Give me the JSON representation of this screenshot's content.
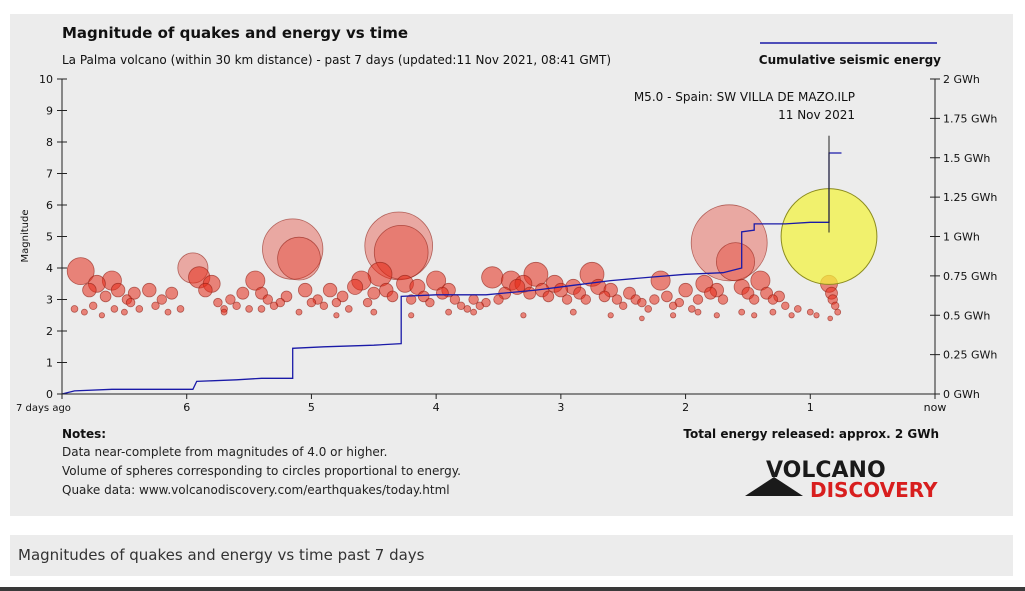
{
  "caption": "Magnitudes of quakes and energy vs time past 7 days",
  "colors": {
    "panel_bg": "#ececec",
    "energy_line": "#1a1aa8",
    "bubble_fill": "#e62c1a",
    "bubble_stroke": "#8c1a10",
    "highlight_fill": "#f2f23c",
    "highlight_stroke": "#8c8c20",
    "axis": "#222222",
    "logo_dark": "#1a1a1a",
    "logo_red": "#d81e1e"
  },
  "notes": {
    "heading": "Notes:",
    "lines": [
      "Data near-complete from magnitudes of 4.0 or higher.",
      "Volume of spheres corresponding to circles proportional to energy.",
      "Quake data: www.volcanodiscovery.com/earthquakes/today.html"
    ]
  },
  "total_energy": "Total energy released: approx. 2 GWh",
  "logo": {
    "line1": "VOLCANO",
    "line2": "DISCOVERY"
  },
  "chart_data": {
    "type": "scatter",
    "title": "Magnitude of quakes and energy vs time",
    "subtitle": "La Palma volcano (within 30 km distance) - past 7 days (updated:11 Nov 2021, 08:41 GMT)",
    "ylabel": "Magnitude",
    "xlim": [
      7,
      0
    ],
    "ylim": [
      0,
      10
    ],
    "x_ticks": [
      {
        "value": 7,
        "label": "7 days ago"
      },
      {
        "value": 6,
        "label": "6"
      },
      {
        "value": 5,
        "label": "5"
      },
      {
        "value": 4,
        "label": "4"
      },
      {
        "value": 3,
        "label": "3"
      },
      {
        "value": 2,
        "label": "2"
      },
      {
        "value": 1,
        "label": "1"
      },
      {
        "value": 0,
        "label": "now"
      }
    ],
    "y_ticks": [
      0,
      1,
      2,
      3,
      4,
      5,
      6,
      7,
      8,
      9,
      10
    ],
    "y2_lim_gwh": [
      0,
      2
    ],
    "y2_ticks": [
      {
        "value": 0,
        "label": "0 GWh"
      },
      {
        "value": 0.25,
        "label": "0.25 GWh"
      },
      {
        "value": 0.5,
        "label": "0.5 GWh"
      },
      {
        "value": 0.75,
        "label": "0.75 GWh"
      },
      {
        "value": 1,
        "label": "1 GWh"
      },
      {
        "value": 1.25,
        "label": "1.25 GWh"
      },
      {
        "value": 1.5,
        "label": "1.5 GWh"
      },
      {
        "value": 1.75,
        "label": "1.75 GWh"
      },
      {
        "value": 2,
        "label": "2 GWh"
      }
    ],
    "legend": {
      "label": "Cumulative seismic energy",
      "placement": "top-right"
    },
    "annotation": {
      "line1": "M5.0 - Spain: SW VILLA DE MAZO.ILP",
      "line2": "11 Nov 2021",
      "x_days_ago": 0.85,
      "magnitude": 5.0
    },
    "highlight_quake": {
      "x_days_ago": 0.85,
      "magnitude": 5.0
    },
    "quakes": [
      [
        6.85,
        3.9
      ],
      [
        6.78,
        3.3
      ],
      [
        6.72,
        3.5
      ],
      [
        6.65,
        3.1
      ],
      [
        6.6,
        3.6
      ],
      [
        6.55,
        3.3
      ],
      [
        6.48,
        3.0
      ],
      [
        6.42,
        3.2
      ],
      [
        6.3,
        3.3
      ],
      [
        6.2,
        3.0
      ],
      [
        6.12,
        3.2
      ],
      [
        6.9,
        2.7
      ],
      [
        6.82,
        2.6
      ],
      [
        6.75,
        2.8
      ],
      [
        6.68,
        2.5
      ],
      [
        6.58,
        2.7
      ],
      [
        6.5,
        2.6
      ],
      [
        6.45,
        2.9
      ],
      [
        6.38,
        2.7
      ],
      [
        6.25,
        2.8
      ],
      [
        6.15,
        2.6
      ],
      [
        6.05,
        2.7
      ],
      [
        5.95,
        4.0
      ],
      [
        5.9,
        3.7
      ],
      [
        5.85,
        3.3
      ],
      [
        5.8,
        3.5
      ],
      [
        5.75,
        2.9
      ],
      [
        5.7,
        2.7
      ],
      [
        5.65,
        3.0
      ],
      [
        5.6,
        2.8
      ],
      [
        5.55,
        3.2
      ],
      [
        5.5,
        2.7
      ],
      [
        5.45,
        3.6
      ],
      [
        5.4,
        3.2
      ],
      [
        5.35,
        3.0
      ],
      [
        5.3,
        2.8
      ],
      [
        5.25,
        2.9
      ],
      [
        5.2,
        3.1
      ],
      [
        5.15,
        4.6
      ],
      [
        5.1,
        4.3
      ],
      [
        5.05,
        3.3
      ],
      [
        5.0,
        2.9
      ],
      [
        4.95,
        3.0
      ],
      [
        4.9,
        2.8
      ],
      [
        4.85,
        3.3
      ],
      [
        4.8,
        2.9
      ],
      [
        4.75,
        3.1
      ],
      [
        4.7,
        2.7
      ],
      [
        4.65,
        3.4
      ],
      [
        4.6,
        3.6
      ],
      [
        4.55,
        2.9
      ],
      [
        4.5,
        3.2
      ],
      [
        4.45,
        3.8
      ],
      [
        4.4,
        3.3
      ],
      [
        4.35,
        3.1
      ],
      [
        4.3,
        4.7
      ],
      [
        4.28,
        4.5
      ],
      [
        4.25,
        3.5
      ],
      [
        4.2,
        3.0
      ],
      [
        4.15,
        3.4
      ],
      [
        4.1,
        3.1
      ],
      [
        4.05,
        2.9
      ],
      [
        4.0,
        3.6
      ],
      [
        3.95,
        3.2
      ],
      [
        3.9,
        3.3
      ],
      [
        3.85,
        3.0
      ],
      [
        3.8,
        2.8
      ],
      [
        3.75,
        2.7
      ],
      [
        3.7,
        3.0
      ],
      [
        3.65,
        2.8
      ],
      [
        3.6,
        2.9
      ],
      [
        3.55,
        3.7
      ],
      [
        3.5,
        3.0
      ],
      [
        3.45,
        3.2
      ],
      [
        3.4,
        3.6
      ],
      [
        3.35,
        3.4
      ],
      [
        3.3,
        3.5
      ],
      [
        3.25,
        3.2
      ],
      [
        3.2,
        3.8
      ],
      [
        3.15,
        3.3
      ],
      [
        3.1,
        3.1
      ],
      [
        3.05,
        3.5
      ],
      [
        3.0,
        3.3
      ],
      [
        2.95,
        3.0
      ],
      [
        2.9,
        3.4
      ],
      [
        2.85,
        3.2
      ],
      [
        2.8,
        3.0
      ],
      [
        2.75,
        3.8
      ],
      [
        2.7,
        3.4
      ],
      [
        2.65,
        3.1
      ],
      [
        2.6,
        3.3
      ],
      [
        2.55,
        3.0
      ],
      [
        2.5,
        2.8
      ],
      [
        2.45,
        3.2
      ],
      [
        2.4,
        3.0
      ],
      [
        2.35,
        2.9
      ],
      [
        2.3,
        2.7
      ],
      [
        2.25,
        3.0
      ],
      [
        2.2,
        3.6
      ],
      [
        2.15,
        3.1
      ],
      [
        2.1,
        2.8
      ],
      [
        2.05,
        2.9
      ],
      [
        2.0,
        3.3
      ],
      [
        1.95,
        2.7
      ],
      [
        1.9,
        3.0
      ],
      [
        1.85,
        3.5
      ],
      [
        1.8,
        3.2
      ],
      [
        1.75,
        3.3
      ],
      [
        1.7,
        3.0
      ],
      [
        1.65,
        4.8
      ],
      [
        1.6,
        4.2
      ],
      [
        1.55,
        3.4
      ],
      [
        1.5,
        3.2
      ],
      [
        1.45,
        3.0
      ],
      [
        1.4,
        3.6
      ],
      [
        1.35,
        3.2
      ],
      [
        1.3,
        3.0
      ],
      [
        1.25,
        3.1
      ],
      [
        1.2,
        2.8
      ],
      [
        1.1,
        2.7
      ],
      [
        1.0,
        2.6
      ],
      [
        0.95,
        2.5
      ],
      [
        0.85,
        3.5
      ],
      [
        0.83,
        3.2
      ],
      [
        0.82,
        3.0
      ],
      [
        0.8,
        2.8
      ],
      [
        0.78,
        2.6
      ],
      [
        0.84,
        2.4
      ],
      [
        3.7,
        2.6
      ],
      [
        3.3,
        2.5
      ],
      [
        2.9,
        2.6
      ],
      [
        2.6,
        2.5
      ],
      [
        2.35,
        2.4
      ],
      [
        2.1,
        2.5
      ],
      [
        1.9,
        2.6
      ],
      [
        1.75,
        2.5
      ],
      [
        1.55,
        2.6
      ],
      [
        1.45,
        2.5
      ],
      [
        1.3,
        2.6
      ],
      [
        1.15,
        2.5
      ],
      [
        5.7,
        2.6
      ],
      [
        5.4,
        2.7
      ],
      [
        5.1,
        2.6
      ],
      [
        4.8,
        2.5
      ],
      [
        4.5,
        2.6
      ],
      [
        4.2,
        2.5
      ],
      [
        3.9,
        2.6
      ]
    ],
    "cumulative_energy_gwh": [
      [
        7.0,
        0.0
      ],
      [
        6.9,
        0.02
      ],
      [
        6.6,
        0.03
      ],
      [
        6.2,
        0.03
      ],
      [
        5.95,
        0.03
      ],
      [
        5.92,
        0.08
      ],
      [
        5.6,
        0.09
      ],
      [
        5.4,
        0.1
      ],
      [
        5.15,
        0.1
      ],
      [
        5.15,
        0.29
      ],
      [
        4.9,
        0.3
      ],
      [
        4.5,
        0.31
      ],
      [
        4.28,
        0.32
      ],
      [
        4.28,
        0.62
      ],
      [
        4.0,
        0.63
      ],
      [
        3.6,
        0.63
      ],
      [
        3.2,
        0.66
      ],
      [
        2.9,
        0.69
      ],
      [
        2.6,
        0.72
      ],
      [
        2.3,
        0.74
      ],
      [
        2.0,
        0.76
      ],
      [
        1.7,
        0.77
      ],
      [
        1.55,
        0.8
      ],
      [
        1.55,
        1.03
      ],
      [
        1.45,
        1.04
      ],
      [
        1.45,
        1.08
      ],
      [
        1.2,
        1.08
      ],
      [
        1.0,
        1.09
      ],
      [
        0.87,
        1.09
      ],
      [
        0.85,
        1.09
      ],
      [
        0.85,
        1.53
      ],
      [
        0.75,
        1.53
      ]
    ]
  }
}
